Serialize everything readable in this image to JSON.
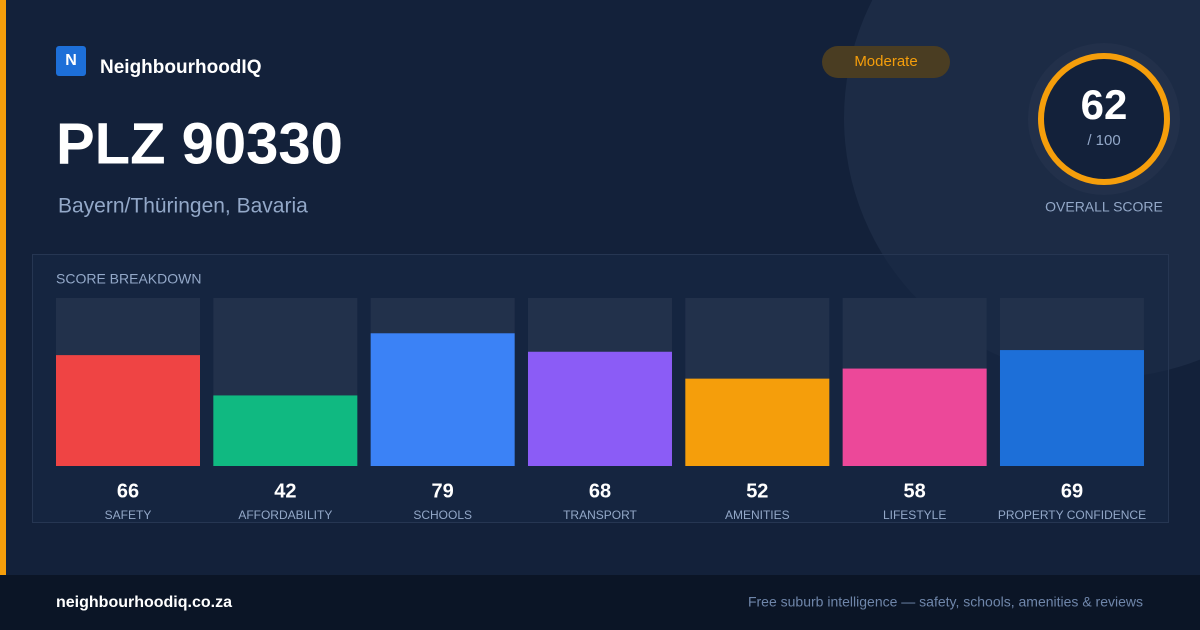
{
  "brand": "NeighbourhoodIQ",
  "logo_letter": "N",
  "badge": "Moderate",
  "title": "PLZ 90330",
  "subtitle": "Bayern/Thüringen, Bavaria",
  "score": {
    "value": 62,
    "max": {
      "value": 100,
      "label": "/ 100"
    },
    "label": "OVERALL SCORE"
  },
  "chart_data": {
    "type": "bar",
    "title": "SCORE BREAKDOWN",
    "categories": [
      "SAFETY",
      "AFFORDABILITY",
      "SCHOOLS",
      "TRANSPORT",
      "AMENITIES",
      "LIFESTYLE",
      "PROPERTY CONFIDENCE"
    ],
    "values": [
      66,
      42,
      79,
      68,
      52,
      58,
      69
    ],
    "colors": [
      "#ef4444",
      "#10b981",
      "#3b82f6",
      "#8b5cf6",
      "#f59e0b",
      "#ec4899",
      "#1d6fd8"
    ],
    "ylim": [
      0,
      100
    ]
  },
  "footer": {
    "site": "neighbourhoodiq.co.za",
    "tagline": "Free suburb intelligence — safety, schools, amenities & reviews"
  }
}
